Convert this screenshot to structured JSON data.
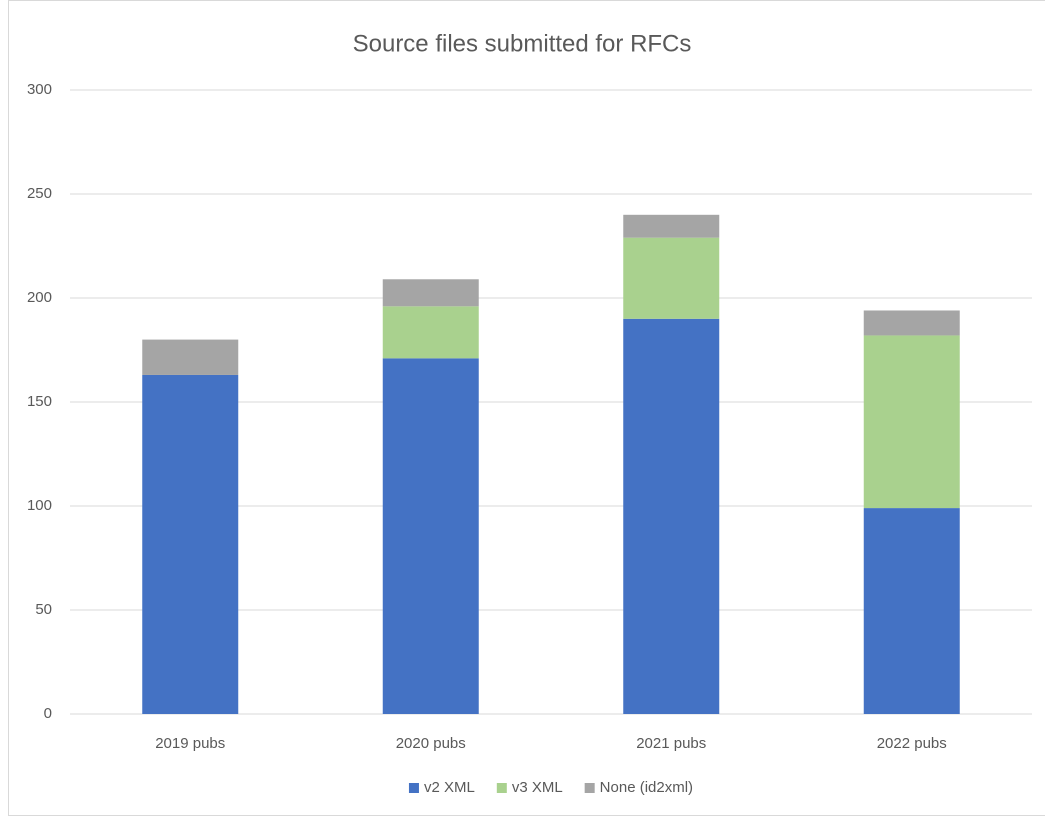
{
  "chart_data": {
    "type": "stacked_bar",
    "title": "Source files submitted for RFCs",
    "categories": [
      "2019 pubs",
      "2020 pubs",
      "2021 pubs",
      "2022 pubs"
    ],
    "series": [
      {
        "name": "v2 XML",
        "color": "#4472c4",
        "values": [
          163,
          171,
          190,
          99
        ]
      },
      {
        "name": "v3 XML",
        "color": "#a9d18e",
        "values": [
          0,
          25,
          39,
          83
        ]
      },
      {
        "name": "None (id2xml)",
        "color": "#a5a5a5",
        "values": [
          17,
          13,
          11,
          12
        ]
      }
    ],
    "ylim": [
      0,
      300
    ],
    "yticks": [
      0,
      50,
      100,
      150,
      200,
      250,
      300
    ],
    "grid": true,
    "legend": "bottom"
  }
}
